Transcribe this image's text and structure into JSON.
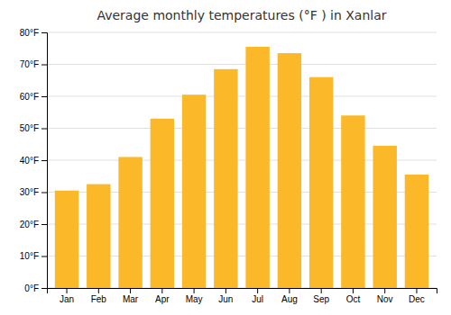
{
  "chart_data": {
    "type": "bar",
    "title": "Average monthly temperatures (°F ) in Xanlar",
    "categories": [
      "Jan",
      "Feb",
      "Mar",
      "Apr",
      "May",
      "Jun",
      "Jul",
      "Aug",
      "Sep",
      "Oct",
      "Nov",
      "Dec"
    ],
    "values": [
      30.5,
      32.5,
      41.0,
      53.0,
      60.5,
      68.5,
      75.5,
      73.5,
      66.0,
      54.0,
      44.5,
      35.5
    ],
    "color": "#FBB929",
    "ylim": [
      0,
      80
    ],
    "yticks": [
      {
        "value": 0,
        "label": "0°F"
      },
      {
        "value": 10,
        "label": "10°F"
      },
      {
        "value": 20,
        "label": "20°F"
      },
      {
        "value": 30,
        "label": "30°F"
      },
      {
        "value": 40,
        "label": "40°F"
      },
      {
        "value": 50,
        "label": "50°F"
      },
      {
        "value": 60,
        "label": "60°F"
      },
      {
        "value": 70,
        "label": "70°F"
      },
      {
        "value": 80,
        "label": "80°F"
      }
    ],
    "grid": true
  }
}
